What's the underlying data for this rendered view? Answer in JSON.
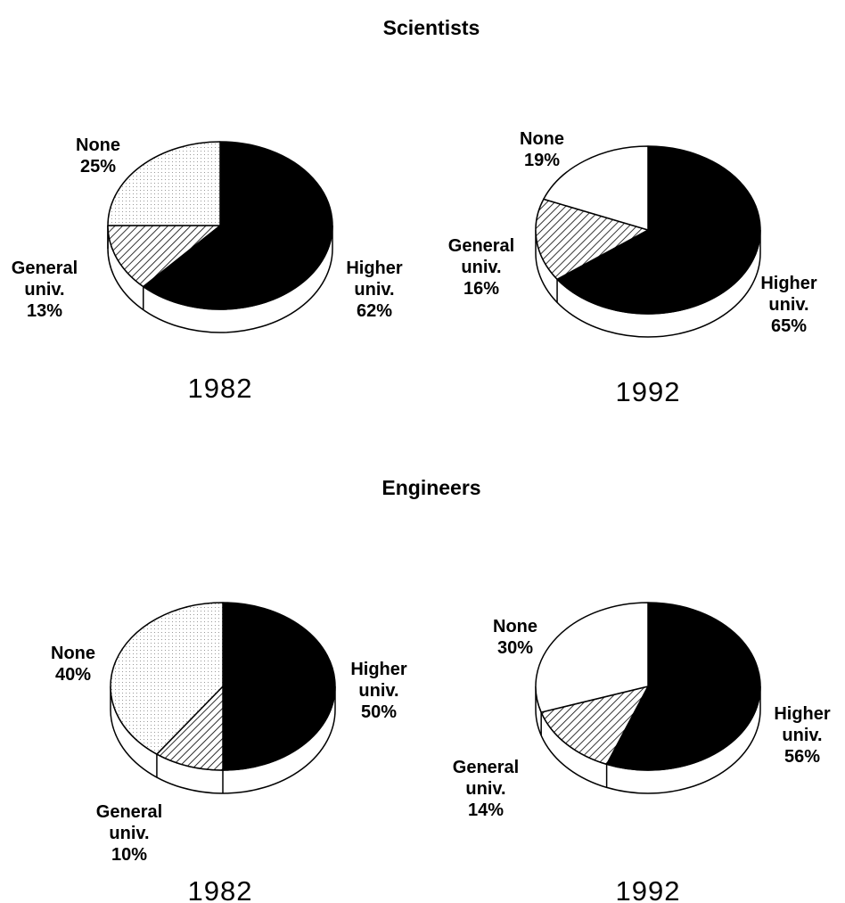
{
  "titles": [
    "Scientists",
    "Engineers"
  ],
  "chart_data": [
    {
      "type": "pie",
      "title": "1982",
      "categories": [
        "Higher univ.",
        "General univ.",
        "None"
      ],
      "values": [
        62,
        13,
        25
      ],
      "value_labels": [
        "62%",
        "13%",
        "25%"
      ],
      "colors": [
        "#000000",
        "hatch",
        "stipple"
      ]
    },
    {
      "type": "pie",
      "title": "1992",
      "categories": [
        "Higher univ.",
        "General univ.",
        "None"
      ],
      "values": [
        65,
        16,
        19
      ],
      "value_labels": [
        "65%",
        "16%",
        "19%"
      ],
      "colors": [
        "#000000",
        "hatch",
        "#ffffff"
      ]
    },
    {
      "type": "pie",
      "title": "1982",
      "categories": [
        "Higher univ.",
        "General univ.",
        "None"
      ],
      "values": [
        50,
        10,
        40
      ],
      "value_labels": [
        "50%",
        "10%",
        "40%"
      ],
      "colors": [
        "#000000",
        "hatch",
        "stipple"
      ]
    },
    {
      "type": "pie",
      "title": "1992",
      "categories": [
        "Higher univ.",
        "General univ.",
        "None"
      ],
      "values": [
        56,
        14,
        30
      ],
      "value_labels": [
        "56%",
        "14%",
        "30%"
      ],
      "colors": [
        "#000000",
        "hatch",
        "#ffffff"
      ]
    }
  ]
}
